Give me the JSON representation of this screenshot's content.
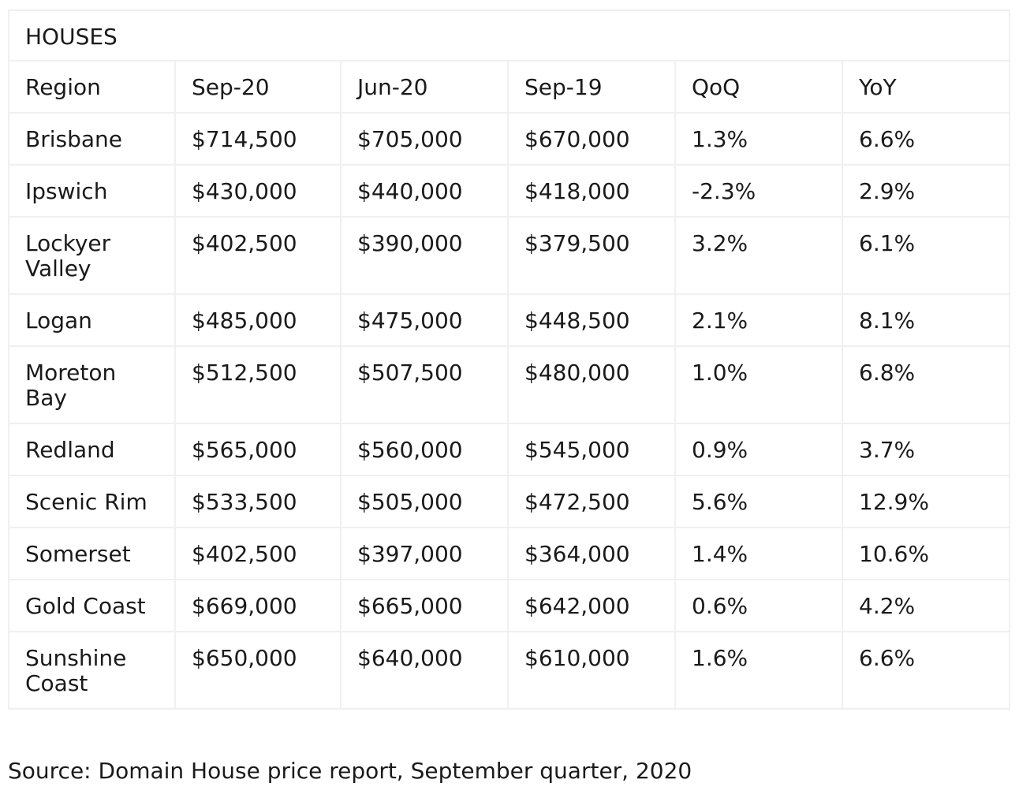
{
  "chart_data": {
    "type": "table",
    "title": "HOUSES",
    "columns": [
      "Region",
      "Sep-20",
      "Jun-20",
      "Sep-19",
      "QoQ",
      "YoY"
    ],
    "rows": [
      [
        "Brisbane",
        "$714,500",
        "$705,000",
        "$670,000",
        "1.3%",
        "6.6%"
      ],
      [
        "Ipswich",
        "$430,000",
        "$440,000",
        "$418,000",
        "-2.3%",
        "2.9%"
      ],
      [
        "Lockyer Valley",
        "$402,500",
        "$390,000",
        "$379,500",
        "3.2%",
        "6.1%"
      ],
      [
        "Logan",
        "$485,000",
        "$475,000",
        "$448,500",
        "2.1%",
        "8.1%"
      ],
      [
        "Moreton Bay",
        "$512,500",
        "$507,500",
        "$480,000",
        "1.0%",
        "6.8%"
      ],
      [
        "Redland",
        "$565,000",
        "$560,000",
        "$545,000",
        "0.9%",
        "3.7%"
      ],
      [
        "Scenic Rim",
        "$533,500",
        "$505,000",
        "$472,500",
        "5.6%",
        "12.9%"
      ],
      [
        "Somerset",
        "$402,500",
        "$397,000",
        "$364,000",
        "1.4%",
        "10.6%"
      ],
      [
        "Gold Coast",
        "$669,000",
        "$665,000",
        "$642,000",
        "0.6%",
        "4.2%"
      ],
      [
        "Sunshine Coast",
        "$650,000",
        "$640,000",
        "$610,000",
        "1.6%",
        "6.6%"
      ]
    ]
  },
  "source": "Source: Domain House price report, September quarter, 2020",
  "colors": {
    "text": "#1a1a1a",
    "grid": "#f0f0f0",
    "background": "#ffffff"
  }
}
